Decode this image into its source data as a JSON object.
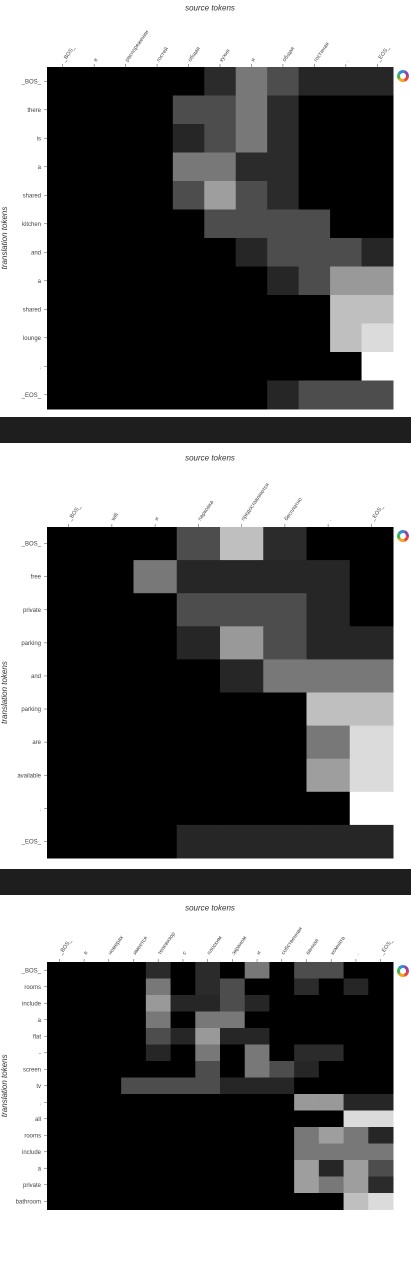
{
  "colors": {
    "background": "#ffffff",
    "separator": "#1e1e1e",
    "logo": [
      "#e8423c",
      "#f7a21b",
      "#3cb54a",
      "#2a8fd8",
      "#8e44ad"
    ]
  },
  "icons": [
    "rainbow-wheel-icon"
  ],
  "chart_data": [
    {
      "type": "heatmap",
      "title": "source tokens",
      "xlabel": "source tokens",
      "ylabel": "translation tokens",
      "colorscale": "gray",
      "zlim": [
        0,
        1
      ],
      "x": [
        "_BOS_",
        "в",
        "распоряжении",
        "гостей",
        "общая",
        "кухня",
        "и",
        "общая",
        "гостиная",
        ".",
        "_EOS_"
      ],
      "y": [
        "_BOS_",
        "there",
        "is",
        "a",
        "shared",
        "kitchen",
        "and",
        "a",
        "shared",
        "lounge",
        ".",
        "_EOS_"
      ],
      "z": [
        [
          0,
          0,
          0,
          0,
          0,
          0.17,
          0.47,
          0.3,
          0.15,
          0.15,
          0.15
        ],
        [
          0,
          0,
          0,
          0,
          0.3,
          0.3,
          0.47,
          0.17,
          0,
          0,
          0
        ],
        [
          0,
          0,
          0,
          0,
          0.15,
          0.3,
          0.47,
          0.17,
          0,
          0,
          0
        ],
        [
          0,
          0,
          0,
          0,
          0.47,
          0.47,
          0.17,
          0.17,
          0,
          0,
          0
        ],
        [
          0,
          0,
          0,
          0,
          0.3,
          0.62,
          0.3,
          0.17,
          0,
          0,
          0
        ],
        [
          0,
          0,
          0,
          0,
          0,
          0.3,
          0.3,
          0.3,
          0.3,
          0,
          0
        ],
        [
          0,
          0,
          0,
          0,
          0,
          0,
          0.15,
          0.3,
          0.3,
          0.3,
          0.15
        ],
        [
          0,
          0,
          0,
          0,
          0,
          0,
          0,
          0.15,
          0.3,
          0.6,
          0.6
        ],
        [
          0,
          0,
          0,
          0,
          0,
          0,
          0,
          0,
          0,
          0.75,
          0.75
        ],
        [
          0,
          0,
          0,
          0,
          0,
          0,
          0,
          0,
          0,
          0.75,
          0.86
        ],
        [
          0,
          0,
          0,
          0,
          0,
          0,
          0,
          0,
          0,
          0,
          1.0
        ],
        [
          0,
          0,
          0,
          0,
          0,
          0,
          0,
          0.15,
          0.3,
          0.3,
          0.3
        ]
      ]
    },
    {
      "type": "heatmap",
      "title": "source tokens",
      "xlabel": "source tokens",
      "ylabel": "translation tokens",
      "colorscale": "gray",
      "zlim": [
        0,
        1
      ],
      "x": [
        "_BOS_",
        "wifi",
        "и",
        "парковка",
        "предоставляются",
        "бесплатно",
        ".",
        "_EOS_"
      ],
      "y": [
        "_BOS_",
        "free",
        "private",
        "parking",
        "and",
        "parking",
        "are",
        "available",
        ".",
        "_EOS_"
      ],
      "z": [
        [
          0,
          0,
          0,
          0.3,
          0.75,
          0.17,
          0,
          0
        ],
        [
          0,
          0,
          0.47,
          0.15,
          0.15,
          0.15,
          0.15,
          0
        ],
        [
          0,
          0,
          0,
          0.3,
          0.3,
          0.3,
          0.15,
          0
        ],
        [
          0,
          0,
          0,
          0.15,
          0.6,
          0.3,
          0.15,
          0.15
        ],
        [
          0,
          0,
          0,
          0,
          0.15,
          0.47,
          0.47,
          0.47
        ],
        [
          0,
          0,
          0,
          0,
          0,
          0,
          0.75,
          0.75
        ],
        [
          0,
          0,
          0,
          0,
          0,
          0,
          0.47,
          0.86
        ],
        [
          0,
          0,
          0,
          0,
          0,
          0,
          0.62,
          0.86
        ],
        [
          0,
          0,
          0,
          0,
          0,
          0,
          0,
          1.0
        ],
        [
          0,
          0,
          0,
          0.15,
          0.15,
          0.15,
          0.15,
          0.15
        ]
      ]
    },
    {
      "type": "heatmap",
      "title": "source tokens",
      "xlabel": "source tokens",
      "ylabel": "translation tokens",
      "colorscale": "gray",
      "zlim": [
        0,
        1
      ],
      "x": [
        "_BOS_",
        "в",
        "номерах",
        "имеется",
        "телевизор",
        "с",
        "плоским",
        "экраном",
        "и",
        "собственная",
        "ванная",
        "комната",
        ".",
        "_EOS_"
      ],
      "y": [
        "_BOS_",
        "rooms",
        "include",
        "a",
        "flat",
        "-",
        "screen",
        "tv",
        ".",
        "all",
        "rooms",
        "include",
        "a",
        "private",
        "bathroom"
      ],
      "z": [
        [
          0,
          0,
          0,
          0,
          0.17,
          0,
          0.17,
          0,
          0.47,
          0,
          0.3,
          0.3,
          0,
          0
        ],
        [
          0,
          0,
          0,
          0,
          0.47,
          0,
          0.17,
          0.3,
          0,
          0,
          0.17,
          0,
          0.15,
          0
        ],
        [
          0,
          0,
          0,
          0,
          0.6,
          0.15,
          0.15,
          0.3,
          0.15,
          0,
          0,
          0,
          0,
          0
        ],
        [
          0,
          0,
          0,
          0,
          0.47,
          0,
          0.47,
          0.47,
          0,
          0,
          0,
          0,
          0,
          0
        ],
        [
          0,
          0,
          0,
          0,
          0.3,
          0.15,
          0.6,
          0.15,
          0.15,
          0,
          0,
          0,
          0,
          0
        ],
        [
          0,
          0,
          0,
          0,
          0.15,
          0,
          0.47,
          0,
          0.47,
          0,
          0.17,
          0.17,
          0,
          0
        ],
        [
          0,
          0,
          0,
          0,
          0,
          0,
          0.3,
          0,
          0.47,
          0.3,
          0.15,
          0,
          0,
          0
        ],
        [
          0,
          0,
          0,
          0.3,
          0.3,
          0.3,
          0.3,
          0.15,
          0.15,
          0.15,
          0,
          0,
          0,
          0
        ],
        [
          0,
          0,
          0,
          0,
          0,
          0,
          0,
          0,
          0,
          0,
          0.6,
          0.6,
          0.15,
          0.15
        ],
        [
          0,
          0,
          0,
          0,
          0,
          0,
          0,
          0,
          0,
          0,
          0,
          0,
          0.86,
          0.86
        ],
        [
          0,
          0,
          0,
          0,
          0,
          0,
          0,
          0,
          0,
          0,
          0.47,
          0.62,
          0.47,
          0.15
        ],
        [
          0,
          0,
          0,
          0,
          0,
          0,
          0,
          0,
          0,
          0,
          0.47,
          0.47,
          0.47,
          0.47
        ],
        [
          0,
          0,
          0,
          0,
          0,
          0,
          0,
          0,
          0,
          0,
          0.62,
          0.15,
          0.62,
          0.3
        ],
        [
          0,
          0,
          0,
          0,
          0,
          0,
          0,
          0,
          0,
          0,
          0.62,
          0.47,
          0.62,
          0.17
        ],
        [
          0,
          0,
          0,
          0,
          0,
          0,
          0,
          0,
          0,
          0,
          0,
          0,
          0.75,
          0.86
        ]
      ]
    }
  ]
}
